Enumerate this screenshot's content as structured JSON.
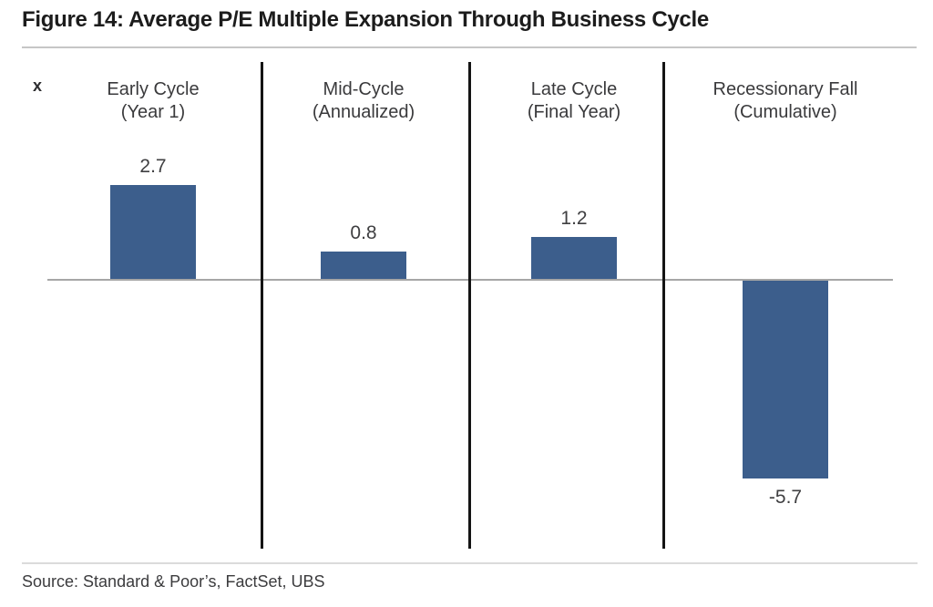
{
  "figure": {
    "title": "Figure 14: Average P/E Multiple Expansion Through Business Cycle",
    "unit_label": "x",
    "source": "Source: Standard & Poor’s, FactSet, UBS"
  },
  "chart_data": {
    "type": "bar",
    "title": "Figure 14: Average P/E Multiple Expansion Through Business Cycle",
    "categories": [
      "Early Cycle (Year 1)",
      "Mid-Cycle (Annualized)",
      "Late Cycle (Final Year)",
      "Recessionary Fall (Cumulative)"
    ],
    "category_lines": [
      [
        "Early Cycle",
        "(Year 1)"
      ],
      [
        "Mid-Cycle",
        "(Annualized)"
      ],
      [
        "Late Cycle",
        "(Final Year)"
      ],
      [
        "Recessionary Fall",
        "(Cumulative)"
      ]
    ],
    "values": [
      2.7,
      0.8,
      1.2,
      -5.7
    ],
    "value_labels": [
      "2.7",
      "0.8",
      "1.2",
      "-5.7"
    ],
    "xlabel": "",
    "ylabel": "x",
    "ylim": [
      -6.5,
      3.5
    ],
    "baseline": 0,
    "grid": false,
    "legend": false,
    "bar_color": "#3C5E8C"
  }
}
